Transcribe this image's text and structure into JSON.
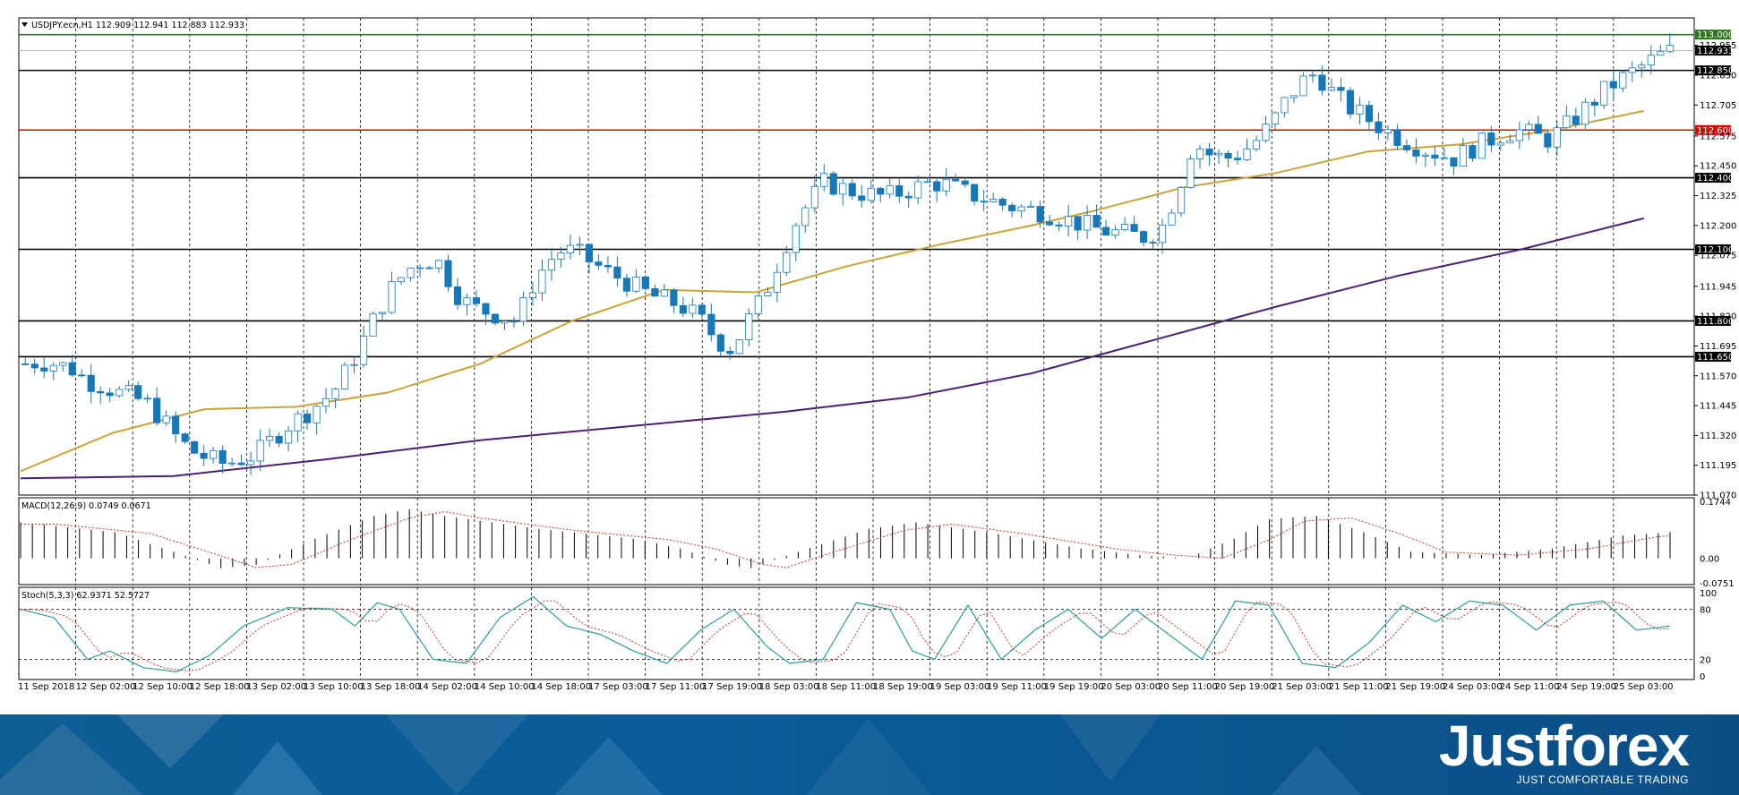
{
  "window": {
    "symbol_info": "USDJPY.ecn,H1  112.909 112.941 112.883 112.933",
    "brand": "Justforex",
    "tagline": "JUST COMFORTABLE TRADING"
  },
  "chart_data": [
    {
      "type": "candlestick",
      "symbol": "USDJPY.ecn",
      "timeframe": "H1",
      "ohlc_header": {
        "open": 112.909,
        "high": 112.941,
        "low": 112.883,
        "close": 112.933
      },
      "ylim": [
        111.07,
        113.07
      ],
      "y_ticks": [
        111.07,
        111.195,
        111.32,
        111.445,
        111.57,
        111.695,
        111.82,
        111.945,
        112.075,
        112.2,
        112.325,
        112.45,
        112.575,
        112.705,
        112.83,
        112.955
      ],
      "x_tick_labels": [
        "11 Sep 2018",
        "12 Sep 02:00",
        "12 Sep 10:00",
        "12 Sep 18:00",
        "13 Sep 02:00",
        "13 Sep 10:00",
        "13 Sep 18:00",
        "14 Sep 02:00",
        "14 Sep 10:00",
        "14 Sep 18:00",
        "17 Sep 03:00",
        "17 Sep 11:00",
        "17 Sep 19:00",
        "18 Sep 03:00",
        "18 Sep 11:00",
        "18 Sep 19:00",
        "19 Sep 03:00",
        "19 Sep 11:00",
        "19 Sep 19:00",
        "20 Sep 03:00",
        "20 Sep 11:00",
        "20 Sep 19:00",
        "21 Sep 03:00",
        "21 Sep 11:00",
        "21 Sep 19:00",
        "24 Sep 03:00",
        "24 Sep 11:00",
        "24 Sep 19:00",
        "25 Sep 03:00"
      ],
      "close_path": [
        111.62,
        111.63,
        111.62,
        111.6,
        111.55,
        111.53,
        111.5,
        111.48,
        111.45,
        111.38,
        111.3,
        111.25,
        111.22,
        111.2,
        111.22,
        111.24,
        111.3,
        111.36,
        111.4,
        111.45,
        111.5,
        111.6,
        111.72,
        111.85,
        111.95,
        112.02,
        112.06,
        112.04,
        111.92,
        111.86,
        111.84,
        111.82,
        111.8,
        111.95,
        112.05,
        112.1,
        112.08,
        112.04,
        112.0,
        111.97,
        111.93,
        111.9,
        111.88,
        111.85,
        111.8,
        111.72,
        111.68,
        111.8,
        111.9,
        112.05,
        112.2,
        112.3,
        112.38,
        112.36,
        112.34,
        112.33,
        112.32,
        112.34,
        112.36,
        112.38,
        112.37,
        112.34,
        112.32,
        112.3,
        112.28,
        112.27,
        112.26,
        112.24,
        112.22,
        112.2,
        112.18,
        112.17,
        112.16,
        112.15,
        112.2,
        112.35,
        112.55,
        112.5,
        112.48,
        112.5,
        112.55,
        112.62,
        112.72,
        112.8,
        112.84,
        112.76,
        112.7,
        112.66,
        112.62,
        112.58,
        112.55,
        112.52,
        112.5,
        112.48,
        112.52,
        112.55,
        112.58,
        112.6,
        112.58,
        112.56,
        112.6,
        112.66,
        112.72,
        112.78,
        112.82,
        112.86,
        112.9,
        112.93
      ],
      "ma_fast_points": [
        [
          0,
          111.17
        ],
        [
          6,
          111.33
        ],
        [
          12,
          111.43
        ],
        [
          18,
          111.44
        ],
        [
          24,
          111.5
        ],
        [
          30,
          111.62
        ],
        [
          36,
          111.8
        ],
        [
          42,
          111.93
        ],
        [
          48,
          111.92
        ],
        [
          54,
          112.03
        ],
        [
          60,
          112.12
        ],
        [
          66,
          112.2
        ],
        [
          70,
          112.26
        ],
        [
          76,
          112.36
        ],
        [
          82,
          112.42
        ],
        [
          88,
          112.51
        ],
        [
          94,
          112.54
        ],
        [
          100,
          112.6
        ],
        [
          106,
          112.68
        ]
      ],
      "ma_slow_points": [
        [
          0,
          111.14
        ],
        [
          10,
          111.15
        ],
        [
          20,
          111.22
        ],
        [
          30,
          111.3
        ],
        [
          40,
          111.36
        ],
        [
          50,
          111.42
        ],
        [
          58,
          111.48
        ],
        [
          66,
          111.58
        ],
        [
          74,
          111.72
        ],
        [
          82,
          111.86
        ],
        [
          90,
          111.99
        ],
        [
          98,
          112.1
        ],
        [
          106,
          112.23
        ]
      ],
      "levels": [
        {
          "price": 113.0,
          "label": "113.000",
          "color": "#2a7a1c"
        },
        {
          "price": 112.933,
          "label": "112.933",
          "color": "#000000"
        },
        {
          "price": 112.85,
          "label": "112.850",
          "color": "#000000"
        },
        {
          "price": 112.6,
          "label": "112.600",
          "color": "#e00000"
        },
        {
          "price": 112.4,
          "label": "112.400",
          "color": "#000000"
        },
        {
          "price": 112.1,
          "label": "112.100",
          "color": "#000000"
        },
        {
          "price": 111.8,
          "label": "111.800",
          "color": "#000000"
        },
        {
          "price": 111.65,
          "label": "111.650",
          "color": "#000000"
        }
      ],
      "colors": {
        "bull": "#ffffff",
        "bear": "#1778b8",
        "ma_fast": "#c9a43a",
        "ma_slow": "#4a1f74"
      }
    },
    {
      "type": "bar",
      "title": "MACD(12,26,9) 0.0749 0.0671",
      "ylim": [
        -0.0751,
        0.1744
      ],
      "y_ticks": [
        0.1744,
        0.0,
        -0.0751
      ],
      "y_tick_labels": [
        "0.1744",
        "0.00",
        "-0.0751"
      ],
      "waypoints": [
        [
          0,
          0.11
        ],
        [
          8,
          0.08
        ],
        [
          13,
          0.02
        ],
        [
          17,
          -0.03
        ],
        [
          20,
          -0.02
        ],
        [
          25,
          0.06
        ],
        [
          30,
          0.13
        ],
        [
          33,
          0.15
        ],
        [
          36,
          0.13
        ],
        [
          44,
          0.09
        ],
        [
          52,
          0.06
        ],
        [
          56,
          0.03
        ],
        [
          60,
          -0.02
        ],
        [
          62,
          -0.03
        ],
        [
          66,
          0.02
        ],
        [
          72,
          0.09
        ],
        [
          76,
          0.11
        ],
        [
          82,
          0.08
        ],
        [
          90,
          0.03
        ],
        [
          95,
          0.01
        ],
        [
          99,
          0.0
        ],
        [
          103,
          0.06
        ],
        [
          106,
          0.12
        ],
        [
          110,
          0.13
        ],
        [
          114,
          0.08
        ],
        [
          118,
          0.02
        ],
        [
          124,
          0.01
        ],
        [
          130,
          0.03
        ],
        [
          136,
          0.07
        ],
        [
          140,
          0.08
        ]
      ]
    },
    {
      "type": "line",
      "title": "Stoch(5,3,3) 62.9371 52.5727",
      "ylim": [
        0,
        100
      ],
      "y_ticks": [
        100,
        80,
        20,
        0
      ],
      "y_tick_labels": [
        "100",
        "80",
        "20",
        "0"
      ],
      "waypoints": [
        [
          0,
          80
        ],
        [
          3,
          70
        ],
        [
          6,
          20
        ],
        [
          8,
          30
        ],
        [
          11,
          10
        ],
        [
          14,
          5
        ],
        [
          17,
          25
        ],
        [
          20,
          60
        ],
        [
          24,
          82
        ],
        [
          28,
          80
        ],
        [
          30,
          60
        ],
        [
          32,
          88
        ],
        [
          34,
          80
        ],
        [
          37,
          20
        ],
        [
          40,
          15
        ],
        [
          43,
          70
        ],
        [
          46,
          95
        ],
        [
          49,
          60
        ],
        [
          52,
          50
        ],
        [
          55,
          30
        ],
        [
          58,
          15
        ],
        [
          61,
          55
        ],
        [
          64,
          80
        ],
        [
          67,
          35
        ],
        [
          69,
          15
        ],
        [
          72,
          20
        ],
        [
          75,
          88
        ],
        [
          78,
          80
        ],
        [
          80,
          30
        ],
        [
          82,
          20
        ],
        [
          85,
          85
        ],
        [
          88,
          20
        ],
        [
          91,
          55
        ],
        [
          94,
          80
        ],
        [
          97,
          45
        ],
        [
          100,
          80
        ],
        [
          103,
          50
        ],
        [
          106,
          20
        ],
        [
          109,
          90
        ],
        [
          112,
          85
        ],
        [
          115,
          15
        ],
        [
          118,
          10
        ],
        [
          121,
          40
        ],
        [
          124,
          85
        ],
        [
          127,
          65
        ],
        [
          130,
          90
        ],
        [
          133,
          85
        ],
        [
          136,
          55
        ],
        [
          139,
          85
        ],
        [
          142,
          90
        ],
        [
          145,
          55
        ],
        [
          148,
          60
        ]
      ],
      "colors": {
        "main": "#2e9b9b",
        "signal": "#c0392b"
      }
    }
  ]
}
